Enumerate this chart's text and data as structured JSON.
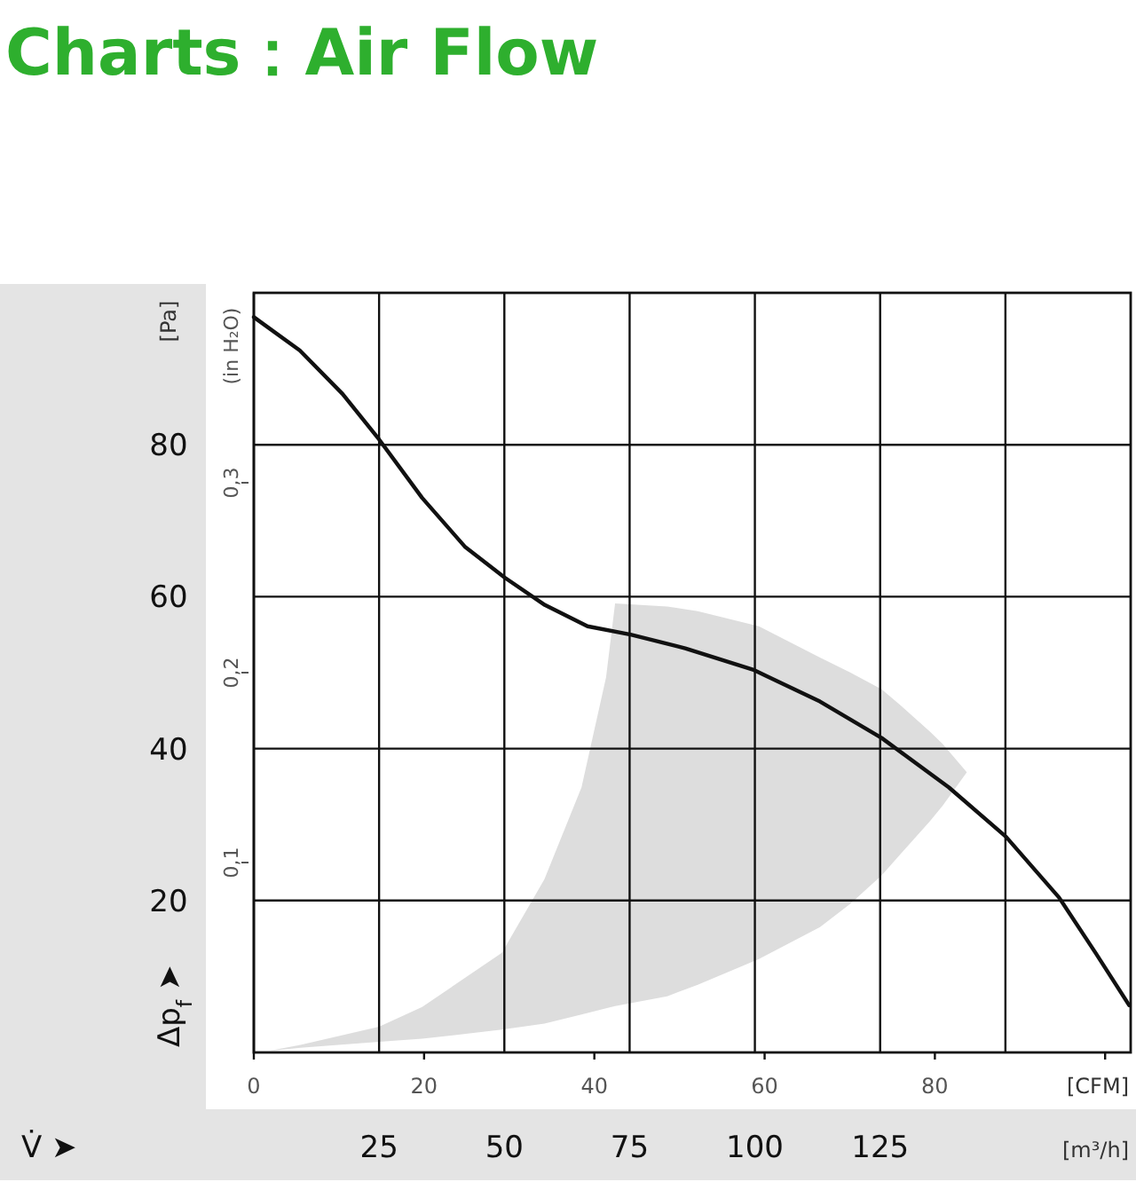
{
  "chart_data": {
    "type": "line",
    "title": "Charts：Air Flow",
    "xlabel": "[m³/h]",
    "x2label": "[CFM]",
    "ylabel": "[Pa]",
    "y2label": "(in H₂O)",
    "annotations": [
      "Δp$_{f}$ ➤",
      "V̇ ➤"
    ],
    "xlim": [
      0,
      175
    ],
    "xticks": [
      {
        "value": 0,
        "label": null
      },
      25,
      50,
      75,
      100,
      125,
      {
        "value": 150,
        "label": null
      }
    ],
    "x2lim": [
      0,
      103
    ],
    "x2ticks": [
      0,
      20,
      40,
      60,
      80,
      {
        "value": 100,
        "label": null
      }
    ],
    "ylim": [
      0,
      100
    ],
    "yticks": [
      20,
      40,
      60,
      80
    ],
    "y2lim": [
      0,
      0.4
    ],
    "y2ticks": [
      {
        "value": 0.1,
        "label": "0,1"
      },
      {
        "value": 0.2,
        "label": "0,2"
      },
      {
        "value": 0.3,
        "label": "0,3"
      }
    ],
    "grid": true,
    "series": [
      {
        "type": "area",
        "color": "#dddddd",
        "x": [
          3,
          9.3,
          25,
          33.6,
          49.5,
          58,
          65.4,
          70.3,
          72.1,
          82.5,
          88.6,
          100.8,
          113,
          119.1,
          125.3,
          128.9,
          135,
          137.5,
          142.3,
          137.5,
          135,
          128.9,
          125.3,
          119.1,
          113,
          100.8,
          88.6,
          82.5,
          72.1,
          70.3,
          65.4,
          58,
          49.5,
          33.6,
          25,
          9.3
        ],
        "values": [
          0.2,
          1.0,
          3.4,
          6.0,
          13.1,
          22.8,
          34.9,
          49.4,
          59.1,
          58.7,
          58.1,
          56.1,
          52.0,
          50.0,
          47.8,
          45.8,
          42.2,
          40.6,
          36.9,
          32.5,
          30.5,
          26.0,
          23.3,
          19.6,
          16.5,
          12.3,
          8.9,
          7.4,
          6.1,
          5.8,
          5.0,
          3.8,
          3.0,
          1.8,
          1.4,
          0.6
        ]
      },
      {
        "color": "#111111",
        "x": [
          0,
          9.2,
          17.7,
          25,
          33.6,
          42.1,
          50.1,
          58.1,
          66.6,
          75.2,
          86.1,
          99.6,
          113,
          125.3,
          138.7,
          150.1,
          160.7,
          168,
          174.7
        ],
        "values": [
          96.8,
          92.4,
          86.7,
          80.7,
          73.0,
          66.6,
          62.5,
          58.9,
          56.1,
          55.0,
          53.2,
          50.4,
          46.2,
          41.4,
          34.9,
          28.4,
          20.4,
          13.1,
          6.2
        ]
      }
    ]
  }
}
